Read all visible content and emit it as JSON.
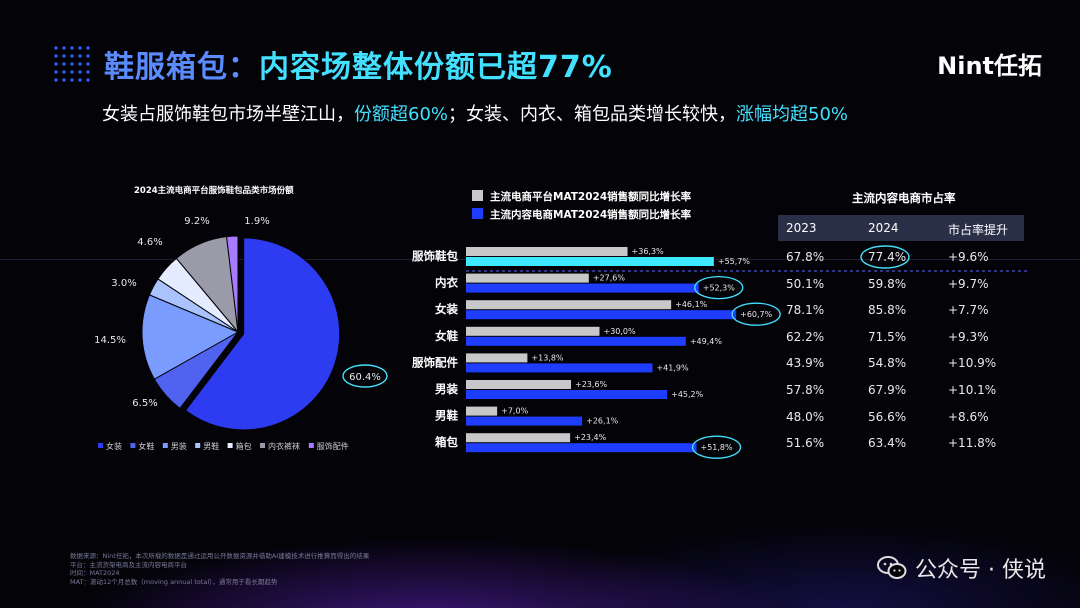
{
  "header": {
    "title_part1": "鞋服箱包：",
    "title_part2": "内容场整体份额已超77%",
    "logo": "Nint任拓"
  },
  "subtitle": {
    "p1": "女装占服饰鞋包市场半壁江山，",
    "p2": "份额超60%",
    "p3": "；女装、内衣、箱包品类增长较快，",
    "p4": "涨幅均超50%"
  },
  "colors": {
    "accent_cyan": "#43e0ff",
    "accent_blue": "#2d4dff",
    "bar_grey": "#c8c8c8",
    "bar_cyan": "#3fe9ff",
    "bar_blue": "#1f3dff"
  },
  "chart_data": [
    {
      "type": "pie",
      "title": "2024主流电商平台服饰鞋包品类市场份额",
      "categories": [
        "女装",
        "女鞋",
        "男装",
        "男鞋",
        "箱包",
        "内衣裤袜",
        "服饰配件"
      ],
      "values": [
        60.4,
        6.5,
        14.5,
        3.0,
        4.6,
        9.2,
        1.9
      ],
      "value_labels": [
        "60.4%",
        "6.5%",
        "14.5%",
        "3.0%",
        "4.6%",
        "9.2%",
        "1.9%"
      ],
      "colors": [
        "#2d3cf0",
        "#4f62f0",
        "#7b9cff",
        "#aac3ff",
        "#e6ecff",
        "#9a9aa8",
        "#a77bff"
      ],
      "legend": "bottom"
    },
    {
      "type": "bar",
      "orientation": "horizontal",
      "categories": [
        "服饰鞋包",
        "内衣",
        "女装",
        "女鞋",
        "服饰配件",
        "男装",
        "男鞋",
        "箱包"
      ],
      "series": [
        {
          "name": "主流电商平台MAT2024销售额同比增长率",
          "values": [
            36.3,
            27.6,
            46.1,
            30.0,
            13.8,
            23.6,
            7.0,
            23.4
          ],
          "labels": [
            "+36,3%",
            "+27,6%",
            "+46,1%",
            "+30,0%",
            "+13,8%",
            "+23,6%",
            "+7,0%",
            "+23,4%"
          ]
        },
        {
          "name": "主流内容电商MAT2024销售额同比增长率",
          "values": [
            55.7,
            52.3,
            60.7,
            49.4,
            41.9,
            45.2,
            26.1,
            51.8
          ],
          "labels": [
            "+55,7%",
            "+52,3%",
            "+60,7%",
            "+49,4%",
            "+41,9%",
            "+45,2%",
            "+26,1%",
            "+51,8%"
          ]
        }
      ],
      "legend": "top"
    },
    {
      "type": "table",
      "title": "主流内容电商市占率",
      "columns": [
        "2023",
        "2024",
        "市占率提升"
      ],
      "rows": [
        [
          "67.8%",
          "77.4%",
          "+9.6%"
        ],
        [
          "50.1%",
          "59.8%",
          "+9.7%"
        ],
        [
          "78.1%",
          "85.8%",
          "+7.7%"
        ],
        [
          "62.2%",
          "71.5%",
          "+9.3%"
        ],
        [
          "43.9%",
          "54.8%",
          "+10.9%"
        ],
        [
          "57.8%",
          "67.9%",
          "+10.1%"
        ],
        [
          "48.0%",
          "56.6%",
          "+8.6%"
        ],
        [
          "51.6%",
          "63.4%",
          "+11.8%"
        ]
      ]
    }
  ],
  "source_note": [
    "数据来源：Nint任拓，本次所载的数据是通过运用公开数据资源并借助AI建模技术进行推算而得出的结果",
    "平台：主流货架电商及主流内容电商平台",
    "时间：MAT2024",
    "MAT：滚动12个月总数（moving annual total），通常用于看长期趋势"
  ],
  "watermark": "公众号 · 侠说"
}
